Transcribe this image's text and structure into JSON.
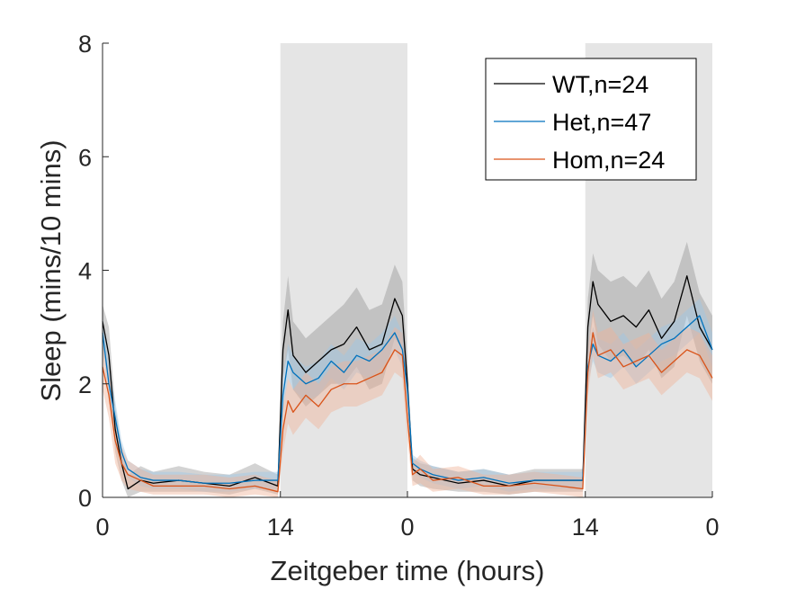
{
  "chart_data": {
    "type": "line",
    "xlabel": "Zeitgeber time (hours)",
    "ylabel": "Sleep (mins/10 mins)",
    "xlim": [
      0,
      48
    ],
    "ylim": [
      0,
      8
    ],
    "xticks": [
      0,
      14,
      24,
      38,
      48
    ],
    "xtick_labels": [
      "0",
      "14",
      "0",
      "14",
      "0"
    ],
    "yticks": [
      0,
      2,
      4,
      6,
      8
    ],
    "ytick_labels": [
      "0",
      "2",
      "4",
      "6",
      "8"
    ],
    "night_periods": [
      [
        14,
        24
      ],
      [
        38,
        48
      ]
    ],
    "legend_position": "top-right",
    "series": [
      {
        "name": "WT,n=24",
        "color": "#000000",
        "band_color": "#808080",
        "band_opacity": 0.35,
        "x": [
          0,
          0.5,
          1,
          1.5,
          2,
          3,
          4,
          6,
          8,
          10,
          12,
          13.8,
          14.2,
          14.6,
          15,
          16,
          17,
          18,
          19,
          20,
          21,
          22,
          23,
          23.6,
          24,
          24.4,
          25,
          26,
          28,
          30,
          32,
          34,
          36,
          37.8,
          38.2,
          38.6,
          39,
          40,
          41,
          42,
          43,
          44,
          45,
          46,
          47,
          48
        ],
        "values": [
          3.1,
          2.5,
          1.2,
          0.6,
          0.15,
          0.3,
          0.25,
          0.3,
          0.25,
          0.2,
          0.35,
          0.2,
          2.6,
          3.3,
          2.5,
          2.2,
          2.4,
          2.6,
          2.7,
          3.0,
          2.6,
          2.7,
          3.5,
          3.2,
          2.0,
          0.5,
          0.4,
          0.35,
          0.25,
          0.3,
          0.2,
          0.3,
          0.3,
          0.3,
          3.0,
          3.8,
          3.4,
          3.1,
          3.2,
          3.0,
          3.3,
          2.8,
          3.1,
          3.9,
          3.0,
          2.6
        ],
        "lower": [
          2.7,
          2.0,
          0.8,
          0.3,
          0.0,
          0.1,
          0.1,
          0.1,
          0.1,
          0.05,
          0.15,
          0.05,
          2.1,
          2.6,
          1.9,
          1.6,
          1.8,
          2.0,
          2.0,
          2.3,
          1.9,
          2.0,
          2.8,
          2.6,
          1.6,
          0.3,
          0.2,
          0.15,
          0.1,
          0.1,
          0.05,
          0.1,
          0.1,
          0.1,
          2.5,
          3.2,
          2.7,
          2.4,
          2.5,
          2.3,
          2.6,
          2.1,
          2.3,
          3.2,
          2.4,
          2.0
        ],
        "upper": [
          3.4,
          3.0,
          1.6,
          0.9,
          0.4,
          0.55,
          0.45,
          0.55,
          0.45,
          0.4,
          0.6,
          0.4,
          3.1,
          3.9,
          3.1,
          2.8,
          3.0,
          3.2,
          3.4,
          3.7,
          3.3,
          3.4,
          4.1,
          3.8,
          2.4,
          0.7,
          0.6,
          0.55,
          0.45,
          0.5,
          0.4,
          0.5,
          0.5,
          0.5,
          3.5,
          4.3,
          4.0,
          3.8,
          3.9,
          3.7,
          4.0,
          3.5,
          3.8,
          4.5,
          3.6,
          3.2
        ]
      },
      {
        "name": "Het,n=47",
        "color": "#0072BD",
        "band_color": "#9ec8e6",
        "band_opacity": 0.45,
        "x": [
          0,
          0.5,
          1,
          1.5,
          2,
          3,
          4,
          6,
          8,
          10,
          12,
          13.8,
          14.2,
          14.6,
          15,
          16,
          17,
          18,
          19,
          20,
          21,
          22,
          23,
          23.6,
          24,
          24.4,
          25,
          26,
          28,
          30,
          32,
          34,
          36,
          37.8,
          38.2,
          38.6,
          39,
          40,
          41,
          42,
          43,
          44,
          45,
          46,
          47,
          48
        ],
        "values": [
          2.9,
          2.0,
          1.4,
          0.8,
          0.5,
          0.35,
          0.3,
          0.3,
          0.25,
          0.25,
          0.3,
          0.3,
          1.8,
          2.4,
          2.2,
          2.0,
          2.1,
          2.4,
          2.2,
          2.5,
          2.4,
          2.6,
          2.9,
          2.6,
          1.9,
          0.6,
          0.5,
          0.4,
          0.3,
          0.35,
          0.25,
          0.3,
          0.3,
          0.3,
          2.3,
          2.7,
          2.5,
          2.4,
          2.6,
          2.3,
          2.5,
          2.7,
          2.8,
          3.0,
          3.2,
          2.6
        ],
        "lower": [
          2.6,
          1.7,
          1.1,
          0.6,
          0.35,
          0.2,
          0.15,
          0.15,
          0.1,
          0.1,
          0.15,
          0.15,
          1.5,
          2.1,
          1.9,
          1.7,
          1.8,
          2.1,
          1.9,
          2.2,
          2.1,
          2.3,
          2.6,
          2.3,
          1.6,
          0.45,
          0.35,
          0.25,
          0.15,
          0.2,
          0.1,
          0.15,
          0.15,
          0.15,
          2.0,
          2.4,
          2.2,
          2.1,
          2.3,
          2.0,
          2.2,
          2.4,
          2.5,
          2.7,
          2.9,
          2.3
        ],
        "upper": [
          3.2,
          2.3,
          1.7,
          1.0,
          0.65,
          0.5,
          0.45,
          0.45,
          0.4,
          0.4,
          0.45,
          0.45,
          2.1,
          2.7,
          2.5,
          2.3,
          2.4,
          2.7,
          2.5,
          2.8,
          2.7,
          2.9,
          3.2,
          2.9,
          2.2,
          0.75,
          0.65,
          0.55,
          0.45,
          0.5,
          0.4,
          0.45,
          0.45,
          0.45,
          2.6,
          3.0,
          2.8,
          2.7,
          2.9,
          2.6,
          2.8,
          3.0,
          3.1,
          3.3,
          3.5,
          2.9
        ]
      },
      {
        "name": "Hom,n=24",
        "color": "#D95319",
        "band_color": "#f0b49a",
        "band_opacity": 0.45,
        "x": [
          0,
          0.5,
          1,
          1.5,
          2,
          3,
          4,
          6,
          8,
          10,
          12,
          13.8,
          14.2,
          14.6,
          15,
          16,
          17,
          18,
          19,
          20,
          21,
          22,
          23,
          23.6,
          24,
          24.4,
          25,
          26,
          28,
          30,
          32,
          34,
          36,
          37.8,
          38.2,
          38.6,
          39,
          40,
          41,
          42,
          43,
          44,
          45,
          46,
          47,
          48
        ],
        "values": [
          2.3,
          1.8,
          1.0,
          0.6,
          0.4,
          0.3,
          0.2,
          0.2,
          0.2,
          0.15,
          0.2,
          0.1,
          1.2,
          1.7,
          1.5,
          1.8,
          1.6,
          1.9,
          2.0,
          2.0,
          2.1,
          2.2,
          2.6,
          2.5,
          1.4,
          0.4,
          0.5,
          0.3,
          0.35,
          0.2,
          0.2,
          0.25,
          0.2,
          0.15,
          2.2,
          2.9,
          2.5,
          2.6,
          2.3,
          2.4,
          2.5,
          2.2,
          2.4,
          2.6,
          2.5,
          2.1
        ],
        "lower": [
          1.9,
          1.4,
          0.6,
          0.3,
          0.15,
          0.1,
          0.05,
          0.05,
          0.05,
          0.0,
          0.05,
          0.0,
          0.8,
          1.3,
          1.1,
          1.4,
          1.2,
          1.5,
          1.6,
          1.6,
          1.7,
          1.8,
          2.2,
          2.1,
          1.0,
          0.2,
          0.25,
          0.1,
          0.15,
          0.05,
          0.05,
          0.1,
          0.05,
          0.0,
          1.8,
          2.5,
          2.1,
          2.2,
          1.9,
          2.0,
          2.1,
          1.8,
          2.0,
          2.2,
          2.1,
          1.7
        ],
        "upper": [
          2.7,
          2.2,
          1.4,
          0.9,
          0.65,
          0.5,
          0.4,
          0.4,
          0.4,
          0.35,
          0.4,
          0.3,
          1.6,
          2.1,
          1.9,
          2.2,
          2.0,
          2.3,
          2.4,
          2.4,
          2.5,
          2.6,
          3.0,
          2.9,
          1.8,
          0.6,
          0.75,
          0.5,
          0.55,
          0.4,
          0.4,
          0.45,
          0.4,
          0.35,
          2.6,
          3.3,
          2.9,
          3.0,
          2.7,
          2.8,
          2.9,
          2.6,
          2.8,
          3.0,
          2.9,
          2.5
        ]
      }
    ]
  }
}
